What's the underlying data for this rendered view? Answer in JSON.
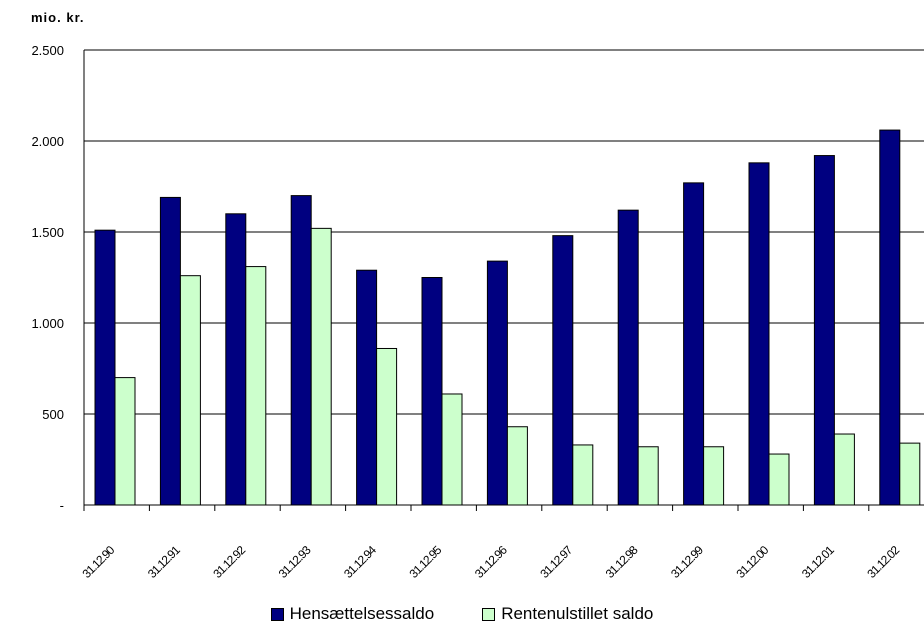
{
  "chart_data": {
    "type": "bar",
    "ylabel": "mio. kr.",
    "ylim": [
      0,
      2500
    ],
    "yticks": [
      {
        "value": 0,
        "label": "-"
      },
      {
        "value": 500,
        "label": "500"
      },
      {
        "value": 1000,
        "label": "1.000"
      },
      {
        "value": 1500,
        "label": "1.500"
      },
      {
        "value": 2000,
        "label": "2.000"
      },
      {
        "value": 2500,
        "label": "2.500"
      }
    ],
    "grid": true,
    "legend_position": "bottom",
    "categories": [
      "31.12.90",
      "31.12.91",
      "31.12.92",
      "31.12.93",
      "31.12.94",
      "31.12.95",
      "31.12.96",
      "31.12.97",
      "31.12.98",
      "31.12.99",
      "31.12.00",
      "31.12.01",
      "31.12.02"
    ],
    "series": [
      {
        "name": "Hensættelsessaldo",
        "color": "#000080",
        "values": [
          1510,
          1690,
          1600,
          1700,
          1290,
          1250,
          1340,
          1480,
          1620,
          1770,
          1880,
          1920,
          2060
        ]
      },
      {
        "name": "Rentenulstillet saldo",
        "color": "#ccffcc",
        "values": [
          700,
          1260,
          1310,
          1520,
          860,
          610,
          430,
          330,
          320,
          320,
          280,
          390,
          340
        ]
      }
    ]
  }
}
